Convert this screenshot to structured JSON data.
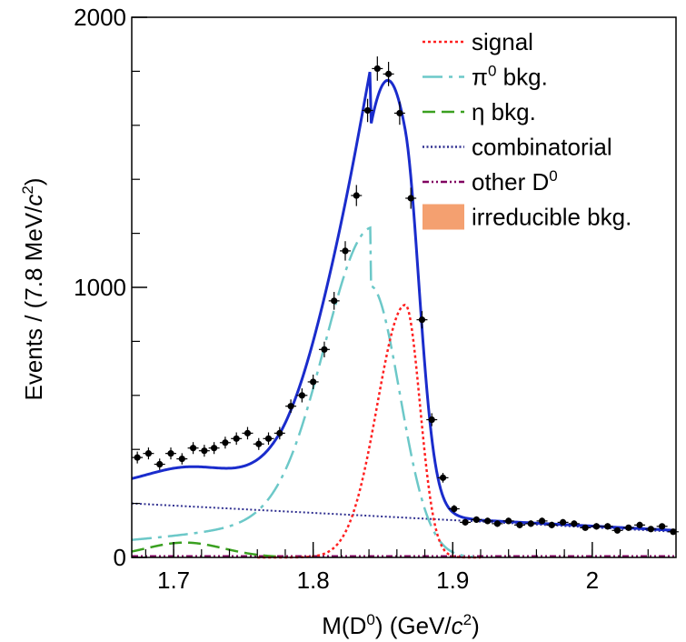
{
  "chart_data": {
    "type": "scatter",
    "xlabel": {
      "prefix": "M(D",
      "sup": "0",
      "mid": ") (GeV/",
      "var": "c",
      "sup2": "2",
      "suffix": ")"
    },
    "ylabel": {
      "prefix": "Events / (7.8 MeV/",
      "var": "c",
      "sup": "2",
      "suffix": ")"
    },
    "xlim": [
      1.67,
      2.06
    ],
    "ylim": [
      0,
      2000
    ],
    "x_ticks": [
      {
        "value": 1.7,
        "label": "1.7"
      },
      {
        "value": 1.8,
        "label": "1.8"
      },
      {
        "value": 1.9,
        "label": "1.9"
      },
      {
        "value": 2.0,
        "label": "2"
      }
    ],
    "y_ticks": [
      {
        "value": 0,
        "label": "0"
      },
      {
        "value": 1000,
        "label": "1000"
      },
      {
        "value": 2000,
        "label": "2000"
      }
    ],
    "grid": false,
    "legend_position": "top-right",
    "legend": [
      {
        "key": "signal",
        "label": "signal",
        "color": "#ff2020",
        "style": "dotted"
      },
      {
        "key": "pi0",
        "label": "π",
        "sup": "0",
        "suffix": " bkg.",
        "color": "#6cc8c8",
        "style": "dashdot"
      },
      {
        "key": "eta",
        "label": "η bkg.",
        "color": "#3aa020",
        "style": "dashed"
      },
      {
        "key": "comb",
        "label": "combinatorial",
        "color": "#303090",
        "style": "dotted"
      },
      {
        "key": "other",
        "label": "other D",
        "sup": "0",
        "color": "#800060",
        "style": "dashdotdot"
      },
      {
        "key": "irreducible",
        "label": "irreducible bkg.",
        "color": "#f4a070",
        "style": "fill"
      }
    ],
    "data_points": {
      "x": [
        1.674,
        1.682,
        1.69,
        1.698,
        1.706,
        1.714,
        1.722,
        1.729,
        1.737,
        1.745,
        1.753,
        1.761,
        1.768,
        1.776,
        1.784,
        1.792,
        1.8,
        1.808,
        1.815,
        1.823,
        1.831,
        1.839,
        1.846,
        1.854,
        1.862,
        1.87,
        1.878,
        1.885,
        1.893,
        1.901,
        1.909,
        1.917,
        1.925,
        1.932,
        1.94,
        1.948,
        1.956,
        1.964,
        1.971,
        1.979,
        1.987,
        1.995,
        2.003,
        2.011,
        2.018,
        2.026,
        2.034,
        2.042,
        2.05,
        2.058
      ],
      "y": [
        370,
        385,
        345,
        385,
        365,
        405,
        395,
        405,
        425,
        440,
        460,
        420,
        440,
        460,
        560,
        600,
        650,
        770,
        950,
        1135,
        1340,
        1655,
        1810,
        1790,
        1645,
        1330,
        880,
        510,
        295,
        180,
        130,
        140,
        135,
        125,
        135,
        120,
        125,
        135,
        120,
        130,
        125,
        110,
        115,
        115,
        100,
        110,
        120,
        105,
        115,
        95
      ],
      "yerr": [
        22,
        22,
        21,
        22,
        21,
        22,
        22,
        22,
        22,
        23,
        23,
        22,
        23,
        23,
        25,
        26,
        27,
        29,
        33,
        36,
        39,
        43,
        45,
        45,
        43,
        39,
        32,
        24,
        18,
        14,
        12,
        12,
        12,
        12,
        12,
        12,
        12,
        12,
        12,
        12,
        12,
        11,
        12,
        12,
        11,
        11,
        12,
        11,
        11,
        10
      ],
      "xerr": 0.0039,
      "color": "#000000"
    },
    "fit_components": {
      "total": {
        "color": "#1a2ccc"
      },
      "signal": {
        "mean": 1.866,
        "peak": 935,
        "sigma_left": 0.02,
        "sigma_right": 0.0105
      },
      "pi0": {
        "mean": 1.841,
        "peak": 1005,
        "sigma_left": 0.033,
        "sigma_right": 0.021,
        "tail_amp": 65,
        "tail_slope": 1.2,
        "cutoff": 1.915
      },
      "eta": {
        "mean": 1.708,
        "peak": 55,
        "sigma": 0.028,
        "range": [
          1.67,
          1.775
        ]
      },
      "combinatorial": {
        "y_at_xmin": 200,
        "y_at_xmax": 95
      },
      "other_d0": {
        "value": 5
      }
    }
  }
}
